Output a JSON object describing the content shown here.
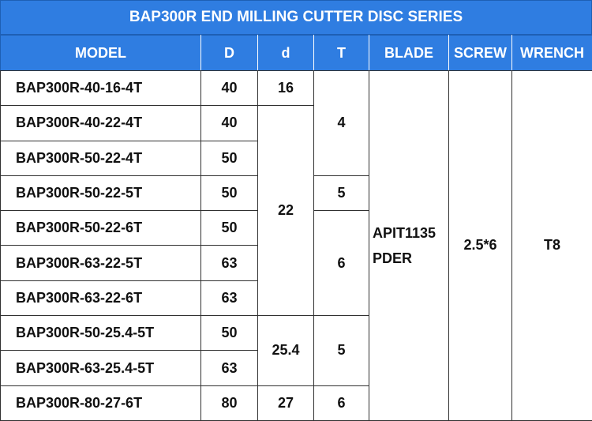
{
  "title": "BAP300R END MILLING CUTTER DISC SERIES",
  "headers": {
    "model": "MODEL",
    "D": "D",
    "d": "d",
    "T": "T",
    "blade": "BLADE",
    "screw": "SCREW",
    "wrench": "WRENCH"
  },
  "rows": [
    {
      "model": "BAP300R-40-16-4T",
      "D": "40"
    },
    {
      "model": "BAP300R-40-22-4T",
      "D": "40"
    },
    {
      "model": "BAP300R-50-22-4T",
      "D": "50"
    },
    {
      "model": "BAP300R-50-22-5T",
      "D": "50"
    },
    {
      "model": "BAP300R-50-22-6T",
      "D": "50"
    },
    {
      "model": "BAP300R-63-22-5T",
      "D": "63"
    },
    {
      "model": "BAP300R-63-22-6T",
      "D": "63"
    },
    {
      "model": "BAP300R-50-25.4-5T",
      "D": "50"
    },
    {
      "model": "BAP300R-63-25.4-5T",
      "D": "63"
    },
    {
      "model": "BAP300R-80-27-6T",
      "D": "80"
    }
  ],
  "d_groups": [
    "16",
    "22",
    "25.4",
    "27"
  ],
  "T_groups": [
    "4",
    "5",
    "6",
    "5",
    "6"
  ],
  "blade": {
    "line1": "APIT1135",
    "line2": "PDER"
  },
  "screw": "2.5*6",
  "wrench": "T8"
}
